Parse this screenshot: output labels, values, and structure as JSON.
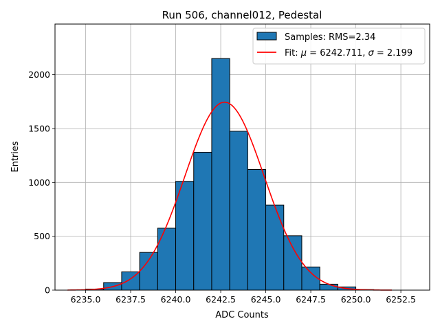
{
  "chart_data": {
    "type": "bar",
    "title": "Run 506, channel012, Pedestal",
    "xlabel": "ADC Counts",
    "ylabel": "Entries",
    "xlim": [
      6233.3,
      6254.1
    ],
    "ylim": [
      0,
      2470
    ],
    "grid": true,
    "legend_placement": "top-right",
    "x_ticks": [
      6235.0,
      6237.5,
      6240.0,
      6242.5,
      6245.0,
      6247.5,
      6250.0,
      6252.5
    ],
    "x_tick_labels": [
      "6235.0",
      "6237.5",
      "6240.0",
      "6242.5",
      "6245.0",
      "6247.5",
      "6250.0",
      "6252.5"
    ],
    "y_ticks": [
      0,
      500,
      1000,
      1500,
      2000
    ],
    "y_tick_labels": [
      "0",
      "500",
      "1000",
      "1500",
      "2000"
    ],
    "histogram": {
      "name": "Samples: RMS=2.34",
      "color": "#1f77b4",
      "edge_color": "#000000",
      "bin_edges": [
        6235.0,
        6236.0,
        6237.0,
        6238.0,
        6239.0,
        6240.0,
        6241.0,
        6242.0,
        6243.0,
        6244.0,
        6245.0,
        6246.0,
        6247.0,
        6248.0,
        6249.0,
        6250.0,
        6251.0
      ],
      "counts": [
        10,
        70,
        170,
        350,
        575,
        1010,
        1280,
        2150,
        1475,
        1120,
        790,
        505,
        215,
        55,
        30,
        5
      ]
    },
    "fit": {
      "name_prefix": "Fit: ",
      "mu_symbol": "μ",
      "mu_text": " = 6242.711, ",
      "sigma_symbol": "σ",
      "sigma_text": " = 2.199",
      "color": "#ff0000",
      "mu": 6242.711,
      "sigma": 2.199,
      "amplitude": 1745,
      "x_range": [
        6234.0,
        6252.0
      ]
    }
  }
}
